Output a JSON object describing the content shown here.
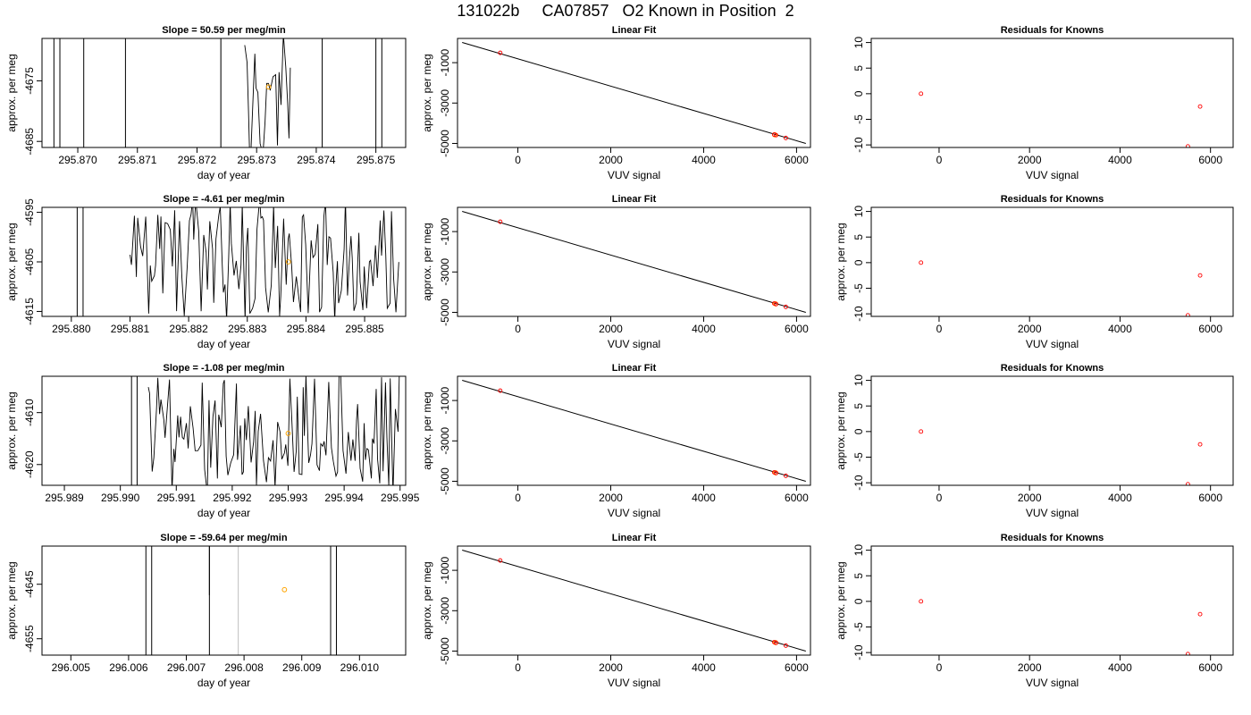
{
  "title": "131022b     CA07857   O2 Known in Position  2",
  "colors": {
    "trace": "#000000",
    "guide": "#bebebe",
    "mean_marker": "#ffa500",
    "known_marker": "#ff0000",
    "fit_line": "#000000"
  },
  "chart_data": [
    {
      "type": "line",
      "title": "Slope =  50.59  per meg/min",
      "xlabel": "day of year",
      "ylabel": "approx. per meg",
      "xlim": [
        295.8694,
        295.8755
      ],
      "ylim": [
        -4686,
        -4668
      ],
      "xticks": [
        295.87,
        295.871,
        295.872,
        295.873,
        295.874,
        295.875
      ],
      "xtick_labels": [
        "295.870",
        "295.871",
        "295.872",
        "295.873",
        "295.874",
        "295.875"
      ],
      "yticks": [
        -4675,
        -4685
      ],
      "ytick_labels": [
        "-4675",
        "-4685"
      ],
      "vertical_lines": [
        295.8696,
        295.8697,
        295.8701,
        295.8708,
        295.8724,
        295.8741,
        295.875,
        295.8751
      ],
      "guide_lines": [
        295.8724,
        295.8741
      ],
      "noise_x_range": [
        295.8728,
        295.8736
      ],
      "mean_point": [
        295.8732,
        -4676
      ]
    },
    {
      "type": "scatter",
      "title": "Linear Fit",
      "xlabel": "VUV signal",
      "ylabel": "approx. per meg",
      "xlim": [
        -1300,
        6300
      ],
      "ylim": [
        -5200,
        200
      ],
      "xticks": [
        0,
        2000,
        4000,
        6000
      ],
      "xtick_labels": [
        "0",
        "2000",
        "4000",
        "6000"
      ],
      "yticks": [
        -1000,
        -3000,
        -5000
      ],
      "ytick_labels": [
        "-1000",
        "-3000",
        "-5000"
      ],
      "fit_line": [
        [
          -1200,
          0
        ],
        [
          6200,
          -5000
        ]
      ],
      "points": [
        [
          -380,
          -514
        ],
        [
          5520,
          -4560
        ],
        [
          5560,
          -4590
        ],
        [
          5770,
          -4730
        ]
      ],
      "mean_points": [
        [
          5530,
          -4570
        ]
      ]
    },
    {
      "type": "scatter",
      "title": "Residuals for Knowns",
      "xlabel": "VUV signal",
      "ylabel": "",
      "xlim": [
        -1500,
        6500
      ],
      "ylim": [
        -10.5,
        10.8
      ],
      "xticks": [
        0,
        2000,
        4000,
        6000
      ],
      "xtick_labels": [
        "0",
        "2000",
        "4000",
        "6000"
      ],
      "yticks": [
        10,
        5,
        0,
        -5,
        -10
      ],
      "ytick_labels": [
        "10",
        "5",
        "0",
        "-5",
        "-10"
      ],
      "points": [
        [
          -400,
          0
        ],
        [
          5500,
          -10.3
        ],
        [
          5770,
          -2.5
        ]
      ]
    },
    {
      "type": "line",
      "title": "Slope =  -4.61  per meg/min",
      "xlabel": "day of year",
      "ylabel": "approx. per meg",
      "xlim": [
        295.8795,
        295.8857
      ],
      "ylim": [
        -4616,
        -4594
      ],
      "xticks": [
        295.88,
        295.881,
        295.882,
        295.883,
        295.884,
        295.885
      ],
      "xtick_labels": [
        "295.880",
        "295.881",
        "295.882",
        "295.883",
        "295.884",
        "295.885"
      ],
      "yticks": [
        -4595,
        -4605,
        -4615
      ],
      "ytick_labels": [
        "-4595",
        "-4605",
        "-4615"
      ],
      "vertical_lines": [
        295.8801,
        295.8802
      ],
      "guide_lines": [],
      "noise_x_range": [
        295.881,
        295.8856
      ],
      "mean_point": [
        295.8837,
        -4605
      ]
    },
    {
      "type": "scatter",
      "title": "Linear Fit",
      "xlabel": "VUV signal",
      "ylabel": "approx. per meg",
      "xlim": [
        -1300,
        6300
      ],
      "ylim": [
        -5200,
        200
      ],
      "xticks": [
        0,
        2000,
        4000,
        6000
      ],
      "xtick_labels": [
        "0",
        "2000",
        "4000",
        "6000"
      ],
      "yticks": [
        -1000,
        -3000,
        -5000
      ],
      "ytick_labels": [
        "-1000",
        "-3000",
        "-5000"
      ],
      "fit_line": [
        [
          -1200,
          0
        ],
        [
          6200,
          -5000
        ]
      ],
      "points": [
        [
          -380,
          -514
        ],
        [
          5520,
          -4560
        ],
        [
          5560,
          -4590
        ],
        [
          5770,
          -4730
        ]
      ],
      "mean_points": [
        [
          5550,
          -4580
        ]
      ]
    },
    {
      "type": "scatter",
      "title": "Residuals for Knowns",
      "xlabel": "VUV signal",
      "ylabel": "approx. per meg",
      "xlim": [
        -1500,
        6500
      ],
      "ylim": [
        -10.5,
        10.8
      ],
      "xticks": [
        0,
        2000,
        4000,
        6000
      ],
      "xtick_labels": [
        "0",
        "2000",
        "4000",
        "6000"
      ],
      "yticks": [
        10,
        5,
        0,
        -5,
        -10
      ],
      "ytick_labels": [
        "10",
        "5",
        "0",
        "-5",
        "-10"
      ],
      "points": [
        [
          -400,
          0
        ],
        [
          5500,
          -10.3
        ],
        [
          5770,
          -2.5
        ]
      ]
    },
    {
      "type": "line",
      "title": "Slope =  -1.08  per meg/min",
      "xlabel": "day of year",
      "ylabel": "approx. per meg",
      "xlim": [
        295.9886,
        295.9951
      ],
      "ylim": [
        -4624,
        -4603
      ],
      "xticks": [
        295.989,
        295.99,
        295.991,
        295.992,
        295.993,
        295.994,
        295.995
      ],
      "xtick_labels": [
        "295.989",
        "295.990",
        "295.991",
        "295.992",
        "295.993",
        "295.994",
        "295.995"
      ],
      "yticks": [
        -4610,
        -4620
      ],
      "ytick_labels": [
        "-4610",
        "-4620"
      ],
      "vertical_lines": [
        295.9902,
        295.9903
      ],
      "guide_lines": [],
      "noise_x_range": [
        295.9905,
        295.995
      ],
      "mean_point": [
        295.993,
        -4614
      ]
    },
    {
      "type": "scatter",
      "title": "Linear Fit",
      "xlabel": "VUV signal",
      "ylabel": "approx. per meg",
      "xlim": [
        -1300,
        6300
      ],
      "ylim": [
        -5200,
        200
      ],
      "xticks": [
        0,
        2000,
        4000,
        6000
      ],
      "xtick_labels": [
        "0",
        "2000",
        "4000",
        "6000"
      ],
      "yticks": [
        -1000,
        -3000,
        -5000
      ],
      "ytick_labels": [
        "-1000",
        "-3000",
        "-5000"
      ],
      "fit_line": [
        [
          -1200,
          0
        ],
        [
          6200,
          -5000
        ]
      ],
      "points": [
        [
          -380,
          -514
        ],
        [
          5520,
          -4560
        ],
        [
          5560,
          -4590
        ],
        [
          5770,
          -4730
        ]
      ],
      "mean_points": [
        [
          5550,
          -4580
        ]
      ]
    },
    {
      "type": "scatter",
      "title": "Residuals for Knowns",
      "xlabel": "VUV signal",
      "ylabel": "approx. per meg",
      "xlim": [
        -1500,
        6500
      ],
      "ylim": [
        -10.5,
        10.8
      ],
      "xticks": [
        0,
        2000,
        4000,
        6000
      ],
      "xtick_labels": [
        "0",
        "2000",
        "4000",
        "6000"
      ],
      "yticks": [
        10,
        5,
        0,
        -5,
        -10
      ],
      "ytick_labels": [
        "10",
        "5",
        "0",
        "-5",
        "-10"
      ],
      "points": [
        [
          -400,
          0
        ],
        [
          5500,
          -10.3
        ],
        [
          5770,
          -2.5
        ]
      ]
    },
    {
      "type": "line",
      "title": "Slope =  -59.64  per meg/min",
      "xlabel": "day of year",
      "ylabel": "approx. per meg",
      "xlim": [
        296.0045,
        296.0108
      ],
      "ylim": [
        -4658,
        -4638
      ],
      "xticks": [
        296.005,
        296.006,
        296.007,
        296.008,
        296.009,
        296.01
      ],
      "xtick_labels": [
        "296.005",
        "296.006",
        "296.007",
        "296.008",
        "296.009",
        "296.010"
      ],
      "yticks": [
        -4645,
        -4655
      ],
      "ytick_labels": [
        "-4645",
        "-4655"
      ],
      "vertical_lines": [
        296.0063,
        296.0064,
        296.0074,
        296.0095,
        296.0096
      ],
      "guide_lines": [
        296.0079,
        296.0096
      ],
      "noise_x_range": [],
      "short_drop": [
        296.0074,
        -4638,
        -4647
      ],
      "mean_point": [
        296.0087,
        -4646
      ]
    },
    {
      "type": "scatter",
      "title": "Linear Fit",
      "xlabel": "VUV signal",
      "ylabel": "approx. per meg",
      "xlim": [
        -1300,
        6300
      ],
      "ylim": [
        -5200,
        200
      ],
      "xticks": [
        0,
        2000,
        4000,
        6000
      ],
      "xtick_labels": [
        "0",
        "2000",
        "4000",
        "6000"
      ],
      "yticks": [
        -1000,
        -3000,
        -5000
      ],
      "ytick_labels": [
        "-1000",
        "-3000",
        "-5000"
      ],
      "fit_line": [
        [
          -1200,
          0
        ],
        [
          6200,
          -5000
        ]
      ],
      "points": [
        [
          -380,
          -514
        ],
        [
          5520,
          -4560
        ],
        [
          5560,
          -4590
        ],
        [
          5770,
          -4730
        ]
      ],
      "mean_points": [
        [
          5550,
          -4580
        ]
      ]
    },
    {
      "type": "scatter",
      "title": "Residuals for Knowns",
      "xlabel": "VUV signal",
      "ylabel": "approx. per meg",
      "xlim": [
        -1500,
        6500
      ],
      "ylim": [
        -10.5,
        10.8
      ],
      "xticks": [
        0,
        2000,
        4000,
        6000
      ],
      "xtick_labels": [
        "0",
        "2000",
        "4000",
        "6000"
      ],
      "yticks": [
        10,
        5,
        0,
        -5,
        -10
      ],
      "ytick_labels": [
        "10",
        "5",
        "0",
        "-5",
        "-10"
      ],
      "points": [
        [
          -400,
          0
        ],
        [
          5500,
          -10.3
        ],
        [
          5770,
          -2.5
        ]
      ]
    }
  ]
}
